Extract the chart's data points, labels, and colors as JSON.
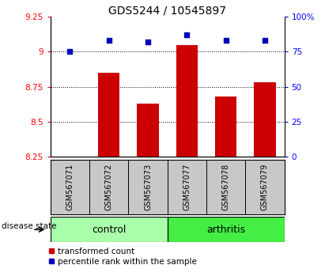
{
  "title": "GDS5244 / 10545897",
  "samples": [
    "GSM567071",
    "GSM567072",
    "GSM567073",
    "GSM567077",
    "GSM567078",
    "GSM567079"
  ],
  "transformed_counts": [
    8.25,
    8.85,
    8.63,
    9.05,
    8.68,
    8.78
  ],
  "percentile_ranks": [
    75,
    83,
    82,
    87,
    83,
    83
  ],
  "ylim_left": [
    8.25,
    9.25
  ],
  "ylim_right": [
    0,
    100
  ],
  "yticks_left": [
    8.25,
    8.5,
    8.75,
    9.0,
    9.25
  ],
  "yticks_right": [
    0,
    25,
    50,
    75,
    100
  ],
  "ytick_labels_left": [
    "8.25",
    "8.5",
    "8.75",
    "9",
    "9.25"
  ],
  "ytick_labels_right": [
    "0",
    "25",
    "50",
    "75",
    "100%"
  ],
  "groups": [
    {
      "label": "control",
      "indices": [
        0,
        1,
        2
      ],
      "color": "#aaffaa"
    },
    {
      "label": "arthritis",
      "indices": [
        3,
        4,
        5
      ],
      "color": "#44ee44"
    }
  ],
  "bar_color": "#cc0000",
  "dot_color": "#0000bb",
  "bar_bottom": 8.25,
  "label_bg_color": "#c8c8c8",
  "disease_state_label": "disease state",
  "legend_bar_label": "transformed count",
  "legend_dot_label": "percentile rank within the sample",
  "title_fontsize": 10,
  "axis_fontsize": 7.5,
  "sample_fontsize": 7,
  "group_fontsize": 9,
  "legend_fontsize": 7.5
}
